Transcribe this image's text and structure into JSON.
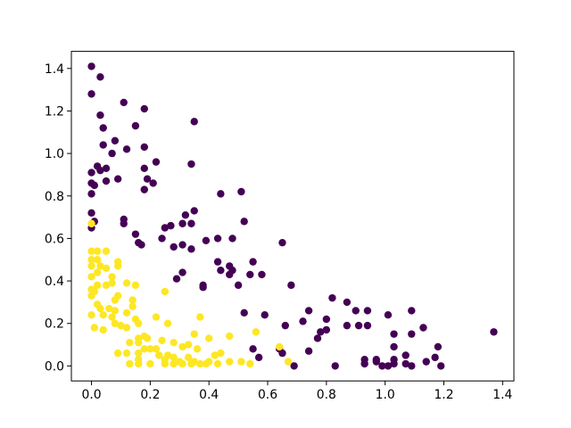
{
  "chart_data": {
    "type": "scatter",
    "series": [
      {
        "color": "#440154",
        "x": [
          0.0,
          0.03,
          0.0,
          0.11,
          0.18,
          0.03,
          0.15,
          0.35,
          0.04,
          0.08,
          0.04,
          0.12,
          0.18,
          0.07,
          0.22,
          0.34,
          0.02,
          0.05,
          0.18,
          0.0,
          0.03,
          0.19,
          0.05,
          0.09,
          0.21,
          0.0,
          0.01,
          0.18,
          0.44,
          0.51,
          0.0,
          0.0,
          0.35,
          0.32,
          0.11,
          0.52,
          0.01,
          0.31,
          0.27,
          0.34,
          0.25,
          0.11,
          0.0,
          0.15,
          0.24,
          0.43,
          0.39,
          0.48,
          0.16,
          0.17,
          0.28,
          0.31,
          0.34,
          0.65,
          0.43,
          0.55,
          0.47,
          0.48,
          0.44,
          0.31,
          0.47,
          0.54,
          0.58,
          0.29,
          0.38,
          0.38,
          0.5,
          0.68,
          0.82,
          0.87,
          0.74,
          0.52,
          0.9,
          0.94,
          1.01,
          1.09,
          0.59,
          0.72,
          0.8,
          1.13,
          0.66,
          0.87,
          0.91,
          0.94,
          0.8,
          1.37,
          0.78,
          1.03,
          1.09,
          0.77,
          0.55,
          0.64,
          1.03,
          1.18,
          0.74,
          0.65,
          0.57,
          1.07,
          1.17,
          0.93,
          0.97,
          1.03,
          1.14,
          0.93,
          0.97,
          0.99,
          1.01,
          1.03,
          1.07,
          1.09,
          0.83,
          0.69,
          1.19
        ],
        "values": [
          1.41,
          1.36,
          1.28,
          1.24,
          1.21,
          1.18,
          1.13,
          1.15,
          1.12,
          1.06,
          1.04,
          1.02,
          1.03,
          1.0,
          0.96,
          0.95,
          0.94,
          0.93,
          0.93,
          0.91,
          0.92,
          0.88,
          0.87,
          0.88,
          0.86,
          0.86,
          0.85,
          0.83,
          0.81,
          0.82,
          0.81,
          0.72,
          0.73,
          0.71,
          0.69,
          0.68,
          0.68,
          0.67,
          0.66,
          0.67,
          0.65,
          0.67,
          0.65,
          0.62,
          0.6,
          0.6,
          0.59,
          0.6,
          0.58,
          0.57,
          0.56,
          0.57,
          0.55,
          0.58,
          0.49,
          0.49,
          0.47,
          0.45,
          0.45,
          0.44,
          0.43,
          0.43,
          0.43,
          0.41,
          0.38,
          0.37,
          0.38,
          0.38,
          0.32,
          0.3,
          0.26,
          0.25,
          0.26,
          0.26,
          0.24,
          0.26,
          0.24,
          0.21,
          0.22,
          0.18,
          0.19,
          0.19,
          0.19,
          0.19,
          0.17,
          0.16,
          0.16,
          0.15,
          0.15,
          0.13,
          0.08,
          0.08,
          0.09,
          0.09,
          0.07,
          0.06,
          0.04,
          0.05,
          0.04,
          0.03,
          0.03,
          0.03,
          0.02,
          0.01,
          0.02,
          0.0,
          0.0,
          0.01,
          0.01,
          0.0,
          0.0,
          0.0,
          0.0
        ]
      },
      {
        "color": "#fde725",
        "x": [
          0.0,
          0.0,
          0.02,
          0.05,
          0.0,
          0.02,
          0.09,
          0.09,
          0.0,
          0.03,
          0.05,
          0.02,
          0.0,
          0.07,
          0.12,
          0.15,
          0.05,
          0.02,
          0.07,
          0.0,
          0.01,
          0.25,
          0.09,
          0.0,
          0.08,
          0.14,
          0.02,
          0.03,
          0.06,
          0.14,
          0.08,
          0.0,
          0.04,
          0.07,
          0.12,
          0.22,
          0.37,
          0.15,
          0.08,
          0.1,
          0.16,
          0.26,
          0.01,
          0.12,
          0.04,
          0.56,
          0.35,
          0.47,
          0.18,
          0.19,
          0.16,
          0.24,
          0.4,
          0.13,
          0.16,
          0.28,
          0.31,
          0.33,
          0.36,
          0.18,
          0.2,
          0.22,
          0.09,
          0.12,
          0.16,
          0.23,
          0.26,
          0.42,
          0.44,
          0.64,
          0.16,
          0.28,
          0.33,
          0.25,
          0.35,
          0.47,
          0.51,
          0.67,
          0.13,
          0.16,
          0.25,
          0.28,
          0.31,
          0.34,
          0.37,
          0.39,
          0.43,
          0.54,
          0.2,
          0.3,
          0.4
        ],
        "values": [
          0.67,
          0.54,
          0.54,
          0.54,
          0.5,
          0.5,
          0.49,
          0.47,
          0.47,
          0.47,
          0.46,
          0.44,
          0.42,
          0.42,
          0.39,
          0.38,
          0.38,
          0.38,
          0.39,
          0.36,
          0.35,
          0.35,
          0.33,
          0.33,
          0.31,
          0.31,
          0.29,
          0.27,
          0.27,
          0.28,
          0.26,
          0.24,
          0.24,
          0.23,
          0.25,
          0.23,
          0.23,
          0.22,
          0.2,
          0.19,
          0.2,
          0.2,
          0.18,
          0.18,
          0.17,
          0.16,
          0.15,
          0.14,
          0.14,
          0.13,
          0.13,
          0.12,
          0.13,
          0.11,
          0.11,
          0.11,
          0.09,
          0.1,
          0.08,
          0.08,
          0.08,
          0.08,
          0.06,
          0.06,
          0.06,
          0.05,
          0.05,
          0.05,
          0.06,
          0.09,
          0.03,
          0.04,
          0.04,
          0.03,
          0.02,
          0.02,
          0.02,
          0.02,
          0.01,
          0.01,
          0.01,
          0.01,
          0.01,
          0.01,
          0.01,
          0.01,
          0.01,
          0.01,
          0.01,
          0.02,
          0.02
        ]
      }
    ],
    "xlim": [
      -0.0685,
      1.4385
    ],
    "xticks": [
      {
        "value": 0,
        "label": "0.0"
      },
      0.2,
      0.4,
      0.6,
      0.8,
      {
        "value": 1,
        "label": "1.0"
      },
      1.2,
      1.4
    ],
    "ylim": [
      -0.0705,
      1.4805
    ],
    "yticks": [
      {
        "value": 0,
        "label": "0.0"
      },
      0.2,
      0.4,
      0.6,
      0.8,
      {
        "value": 1,
        "label": "1.0"
      },
      1.2,
      1.4
    ],
    "grid": false
  }
}
